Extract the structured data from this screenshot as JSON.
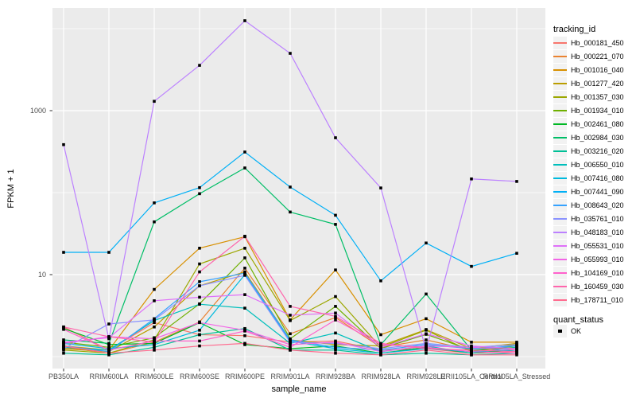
{
  "chart_data": {
    "type": "line",
    "title": "",
    "xlabel": "sample_name",
    "ylabel": "FPKM + 1",
    "y_scale": "log10",
    "ylim": [
      1,
      16000
    ],
    "grid": "on",
    "legend_position": "right",
    "y_ticks": [
      {
        "label": "1000",
        "value": 1000
      },
      {
        "label": "10",
        "value": 10
      }
    ],
    "y_minor_gridlines": [
      1,
      100,
      10000
    ],
    "y_major_gridlines": [
      10,
      1000
    ],
    "categories": [
      "PB350LA",
      "RRIM600LA",
      "RRIM600LE",
      "RRIM600SE",
      "RRIM600PE",
      "RRIM901LA",
      "RRIM928BA",
      "RRIM928LA",
      "RRIM928LE",
      "RRII105LA_Control",
      "RRII105LA_Stressed"
    ],
    "legend_color_title": "tracking_id",
    "legend_shape_title": "quant_status",
    "quant_status_label": "OK",
    "point_color": "#000000",
    "panel_bg": "#EBEBEB",
    "series": [
      {
        "name": "Hb_000181_450",
        "color": "#F8766D",
        "values": [
          2.3,
          1.2,
          2.6,
          1.85,
          1.8,
          1.5,
          1.55,
          1.2,
          1.25,
          1.1,
          1.15
        ]
      },
      {
        "name": "Hb_000221_070",
        "color": "#EA8331",
        "values": [
          1.3,
          1.1,
          1.5,
          2.65,
          12,
          1.9,
          3.0,
          1.3,
          1.6,
          1.2,
          1.25
        ]
      },
      {
        "name": "Hb_001016_040",
        "color": "#D89000",
        "values": [
          1.35,
          1.2,
          6.6,
          21,
          29,
          2.8,
          11.4,
          1.85,
          2.9,
          1.5,
          1.5
        ]
      },
      {
        "name": "Hb_001277_420",
        "color": "#BB9D00",
        "values": [
          1.25,
          1.15,
          2.3,
          7.3,
          10.8,
          1.6,
          1.4,
          1.35,
          2.14,
          1.25,
          1.45
        ]
      },
      {
        "name": "Hb_001357_030",
        "color": "#9CA700",
        "values": [
          1.2,
          1.1,
          1.6,
          13.5,
          21,
          2.75,
          5.4,
          1.3,
          2.1,
          1.15,
          1.4
        ]
      },
      {
        "name": "Hb_001934_010",
        "color": "#6FB000",
        "values": [
          1.5,
          1.3,
          1.7,
          4.4,
          16,
          1.65,
          4.1,
          1.25,
          1.87,
          1.2,
          1.3
        ]
      },
      {
        "name": "Hb_002461_080",
        "color": "#00B824",
        "values": [
          2.2,
          1.4,
          1.45,
          2.6,
          1.4,
          1.25,
          1.35,
          1.1,
          1.3,
          1.1,
          1.2
        ]
      },
      {
        "name": "Hb_002984_030",
        "color": "#00BE67",
        "values": [
          1.6,
          1.45,
          44,
          97,
          200,
          58,
          41,
          1.4,
          5.8,
          1.2,
          1.35
        ]
      },
      {
        "name": "Hb_003216_020",
        "color": "#00C096",
        "values": [
          1.1,
          1.05,
          1.3,
          1.85,
          2.2,
          1.2,
          1.2,
          1.05,
          1.1,
          1.05,
          1.1
        ]
      },
      {
        "name": "Hb_006550_010",
        "color": "#00BFBC",
        "values": [
          1.3,
          1.2,
          2.75,
          4.35,
          3.9,
          1.45,
          1.94,
          1.15,
          1.35,
          1.1,
          1.3
        ]
      },
      {
        "name": "Hb_007416_080",
        "color": "#00BADE",
        "values": [
          1.45,
          1.25,
          1.4,
          2.1,
          10.0,
          1.55,
          1.25,
          1.1,
          1.25,
          1.15,
          1.2
        ]
      },
      {
        "name": "Hb_007441_090",
        "color": "#00B0F6",
        "values": [
          18.7,
          18.7,
          75,
          115,
          313,
          117,
          53,
          8.4,
          24.3,
          12.6,
          18.2
        ]
      },
      {
        "name": "Hb_008643_020",
        "color": "#35A2FF",
        "values": [
          1.35,
          1.15,
          2.9,
          8.2,
          10.4,
          1.6,
          1.3,
          1.2,
          1.4,
          1.25,
          1.35
        ]
      },
      {
        "name": "Hb_035761_010",
        "color": "#8B93FF",
        "values": [
          1.25,
          2.5,
          2.8,
          7.3,
          9.8,
          1.5,
          1.45,
          1.25,
          1.45,
          1.3,
          1.4
        ]
      },
      {
        "name": "Hb_048183_010",
        "color": "#BC81FF",
        "values": [
          385,
          1.65,
          1300,
          3570,
          12500,
          5000,
          467,
          114,
          1.2,
          147,
          137
        ]
      },
      {
        "name": "Hb_055531_010",
        "color": "#DF70F8",
        "values": [
          1.5,
          1.7,
          4.8,
          5.3,
          5.7,
          3.2,
          3.4,
          1.3,
          1.9,
          1.35,
          1.25
        ]
      },
      {
        "name": "Hb_055993_010",
        "color": "#F265E6",
        "values": [
          1.45,
          1.75,
          1.65,
          2.6,
          2.1,
          1.4,
          1.5,
          1.15,
          1.35,
          1.3,
          1.2
        ]
      },
      {
        "name": "Hb_104169_010",
        "color": "#FF61CC",
        "values": [
          2.15,
          1.2,
          1.55,
          1.55,
          2.05,
          1.3,
          2.8,
          1.4,
          1.3,
          1.15,
          1.1
        ]
      },
      {
        "name": "Hb_160459_030",
        "color": "#FF65AC",
        "values": [
          2.3,
          1.75,
          1.5,
          10.8,
          29.4,
          4.1,
          3.1,
          1.45,
          1.25,
          1.2,
          1.15
        ]
      },
      {
        "name": "Hb_178711_010",
        "color": "#FF6B8F",
        "values": [
          1.35,
          1.1,
          1.2,
          1.35,
          1.45,
          1.2,
          1.1,
          1.05,
          1.2,
          1.05,
          1.05
        ]
      }
    ]
  }
}
